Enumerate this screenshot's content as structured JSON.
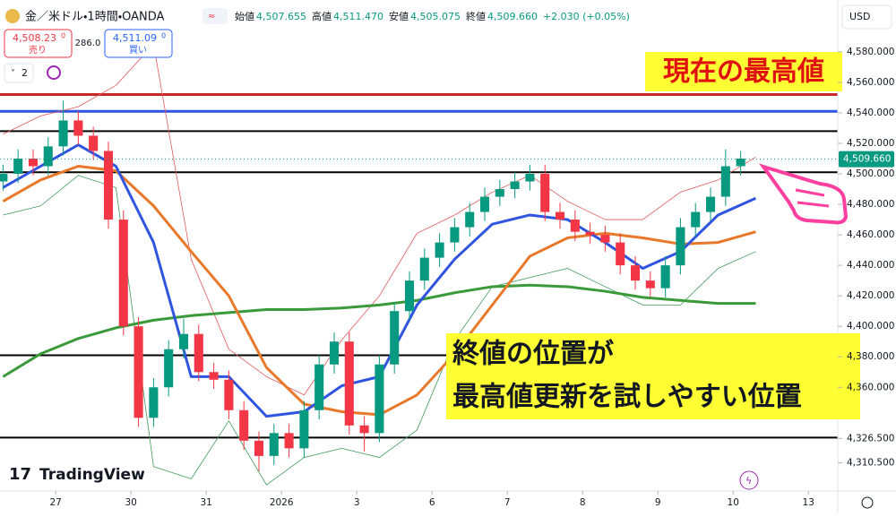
{
  "header": {
    "sell_price": "4,508.23",
    "sell_frac": "0",
    "sell_label": "売り",
    "spread": "286.0",
    "buy_price": "4,511.09",
    "buy_frac": "0",
    "buy_label": "買い",
    "indicator_count": "2",
    "currency": "USD",
    "brand": "TradingView",
    "quote": [
      {
        "label": "始値",
        "value": "4,507.655"
      },
      {
        "label": "高値",
        "value": "4,511.470"
      },
      {
        "label": "安値",
        "value": "4,505.075"
      },
      {
        "label": "終値",
        "value": "4,509.660"
      }
    ],
    "change": "+2.030 (+0.05%)"
  },
  "chart_data": {
    "type": "candlestick",
    "title": "金／米ドル・1時間・OANDA",
    "xlim": [
      -0.74,
      10.39
    ],
    "ylim": [
      4292,
      4614
    ],
    "xticks": [
      {
        "value": 0,
        "label": "27"
      },
      {
        "value": 1,
        "label": "30"
      },
      {
        "value": 2,
        "label": "31"
      },
      {
        "value": 3,
        "label": "2026"
      },
      {
        "value": 4,
        "label": "3"
      },
      {
        "value": 5,
        "label": "6"
      },
      {
        "value": 6,
        "label": "7"
      },
      {
        "value": 7,
        "label": "8"
      },
      {
        "value": 8,
        "label": "9"
      },
      {
        "value": 9,
        "label": "10"
      },
      {
        "value": 10,
        "label": "13"
      }
    ],
    "yticks": [
      {
        "value": 4580,
        "label": "4,580.000"
      },
      {
        "value": 4560,
        "label": "4,560.000"
      },
      {
        "value": 4540,
        "label": "4,540.000"
      },
      {
        "value": 4520,
        "label": "4,520.000"
      },
      {
        "value": 4500,
        "label": "4,500.000"
      },
      {
        "value": 4480,
        "label": "4,480.000"
      },
      {
        "value": 4460,
        "label": "4,460.000"
      },
      {
        "value": 4440,
        "label": "4,440.000"
      },
      {
        "value": 4420,
        "label": "4,420.000"
      },
      {
        "value": 4400,
        "label": "4,400.000"
      },
      {
        "value": 4380,
        "label": "4,380.000"
      },
      {
        "value": 4360,
        "label": "4,360.000"
      },
      {
        "value": 4326.5,
        "label": "4,326.500"
      },
      {
        "value": 4310.5,
        "label": "4,310.500"
      }
    ],
    "candles": {
      "up_color": "#089981",
      "down_color": "#f23645",
      "x": [
        -0.7,
        -0.5,
        -0.3,
        -0.1,
        0.1,
        0.3,
        0.5,
        0.7,
        0.9,
        1.1,
        1.3,
        1.5,
        1.7,
        1.9,
        2.1,
        2.3,
        2.5,
        2.7,
        2.9,
        3.1,
        3.3,
        3.5,
        3.7,
        3.9,
        4.1,
        4.3,
        4.5,
        4.7,
        4.9,
        5.1,
        5.3,
        5.5,
        5.7,
        5.9,
        6.1,
        6.3,
        6.5,
        6.7,
        6.9,
        7.1,
        7.3,
        7.5,
        7.7,
        7.9,
        8.1,
        8.3,
        8.5,
        8.7,
        8.9,
        9.1
      ],
      "open": [
        4495,
        4500,
        4510,
        4505,
        4518,
        4535,
        4525,
        4515,
        4470,
        4400,
        4340,
        4360,
        4385,
        4395,
        4370,
        4365,
        4345,
        4325,
        4315,
        4330,
        4320,
        4345,
        4375,
        4390,
        4335,
        4330,
        4375,
        4410,
        4430,
        4445,
        4455,
        4465,
        4475,
        4485,
        4490,
        4495,
        4500,
        4475,
        4470,
        4462,
        4460,
        4455,
        4440,
        4430,
        4425,
        4440,
        4465,
        4475,
        4485,
        4505
      ],
      "high": [
        4506,
        4516,
        4516,
        4524,
        4548,
        4541,
        4531,
        4521,
        4476,
        4406,
        4366,
        4391,
        4405,
        4401,
        4376,
        4371,
        4351,
        4331,
        4336,
        4336,
        4351,
        4381,
        4396,
        4396,
        4341,
        4381,
        4416,
        4436,
        4451,
        4461,
        4471,
        4481,
        4491,
        4496,
        4501,
        4506,
        4506,
        4481,
        4476,
        4468,
        4466,
        4461,
        4446,
        4436,
        4446,
        4471,
        4481,
        4491,
        4516,
        4515
      ],
      "low": [
        4489,
        4494,
        4499,
        4499,
        4512,
        4519,
        4509,
        4464,
        4394,
        4334,
        4334,
        4354,
        4379,
        4364,
        4359,
        4339,
        4319,
        4305,
        4309,
        4314,
        4314,
        4339,
        4369,
        4329,
        4318,
        4324,
        4369,
        4404,
        4424,
        4439,
        4449,
        4459,
        4469,
        4479,
        4484,
        4489,
        4469,
        4464,
        4456,
        4454,
        4449,
        4434,
        4424,
        4419,
        4419,
        4434,
        4459,
        4469,
        4479,
        4499
      ],
      "close": [
        4500,
        4510,
        4505,
        4518,
        4535,
        4525,
        4515,
        4470,
        4400,
        4340,
        4360,
        4385,
        4395,
        4370,
        4365,
        4345,
        4325,
        4315,
        4330,
        4320,
        4345,
        4375,
        4390,
        4335,
        4330,
        4375,
        4410,
        4430,
        4445,
        4455,
        4465,
        4475,
        4485,
        4490,
        4495,
        4500,
        4475,
        4470,
        4462,
        4460,
        4455,
        4440,
        4430,
        4425,
        4440,
        4465,
        4475,
        4485,
        4505,
        4510
      ]
    },
    "lines": {
      "x": [
        -0.7,
        -0.2,
        0.3,
        0.8,
        1.3,
        1.8,
        2.3,
        2.8,
        3.3,
        3.8,
        4.3,
        4.8,
        5.3,
        5.8,
        6.3,
        6.8,
        7.3,
        7.8,
        8.3,
        8.8,
        9.3
      ],
      "series": [
        {
          "color": "#e05a5a",
          "width": 0.8,
          "values": [
            4526,
            4538,
            4544,
            4558,
            4585,
            4444,
            4385,
            4367,
            4355,
            4391,
            4420,
            4461,
            4473,
            4488,
            4499,
            4482,
            4470,
            4470,
            4488,
            4496,
            4511
          ]
        },
        {
          "color": "#3f9a5a",
          "width": 0.8,
          "values": [
            4473,
            4479,
            4499,
            4491,
            4308,
            4300,
            4338,
            4296,
            4314,
            4320,
            4314,
            4332,
            4391,
            4426,
            4432,
            4438,
            4426,
            4414,
            4414,
            4438,
            4449
          ]
        },
        {
          "color": "#3a9a3a",
          "width": 3,
          "values": [
            4367,
            4382,
            4392,
            4399,
            4404,
            4407,
            4409,
            4411,
            4411,
            4412,
            4414,
            4417,
            4422,
            4426,
            4427,
            4426,
            4423,
            4419,
            4417,
            4415,
            4415
          ]
        },
        {
          "color": "#e8782a",
          "width": 3,
          "values": [
            4482,
            4496,
            4505,
            4502,
            4479,
            4449,
            4420,
            4373,
            4349,
            4344,
            4342,
            4355,
            4382,
            4414,
            4446,
            4458,
            4461,
            4458,
            4454,
            4455,
            4462
          ]
        },
        {
          "color": "#2f55e0",
          "width": 3,
          "values": [
            4491,
            4505,
            4519,
            4505,
            4455,
            4367,
            4367,
            4341,
            4344,
            4361,
            4367,
            4414,
            4444,
            4467,
            4473,
            4470,
            4455,
            4438,
            4449,
            4473,
            4484
          ]
        }
      ]
    },
    "levels": [
      {
        "value": 4552,
        "color": "#c62828"
      },
      {
        "value": 4541,
        "color": "#2f55e0"
      },
      {
        "value": 4528,
        "color": "#000000"
      },
      {
        "value": 4501,
        "color": "#000000"
      },
      {
        "value": 4381,
        "color": "#000000"
      },
      {
        "value": 4327,
        "color": "#000000"
      }
    ],
    "last_price": {
      "value": 4509.66,
      "label": "4,509.660",
      "color": "#089981"
    },
    "annotations": [
      "現在の最高値",
      "終値の位置が",
      "最高値更新を試しやすい位置"
    ]
  }
}
